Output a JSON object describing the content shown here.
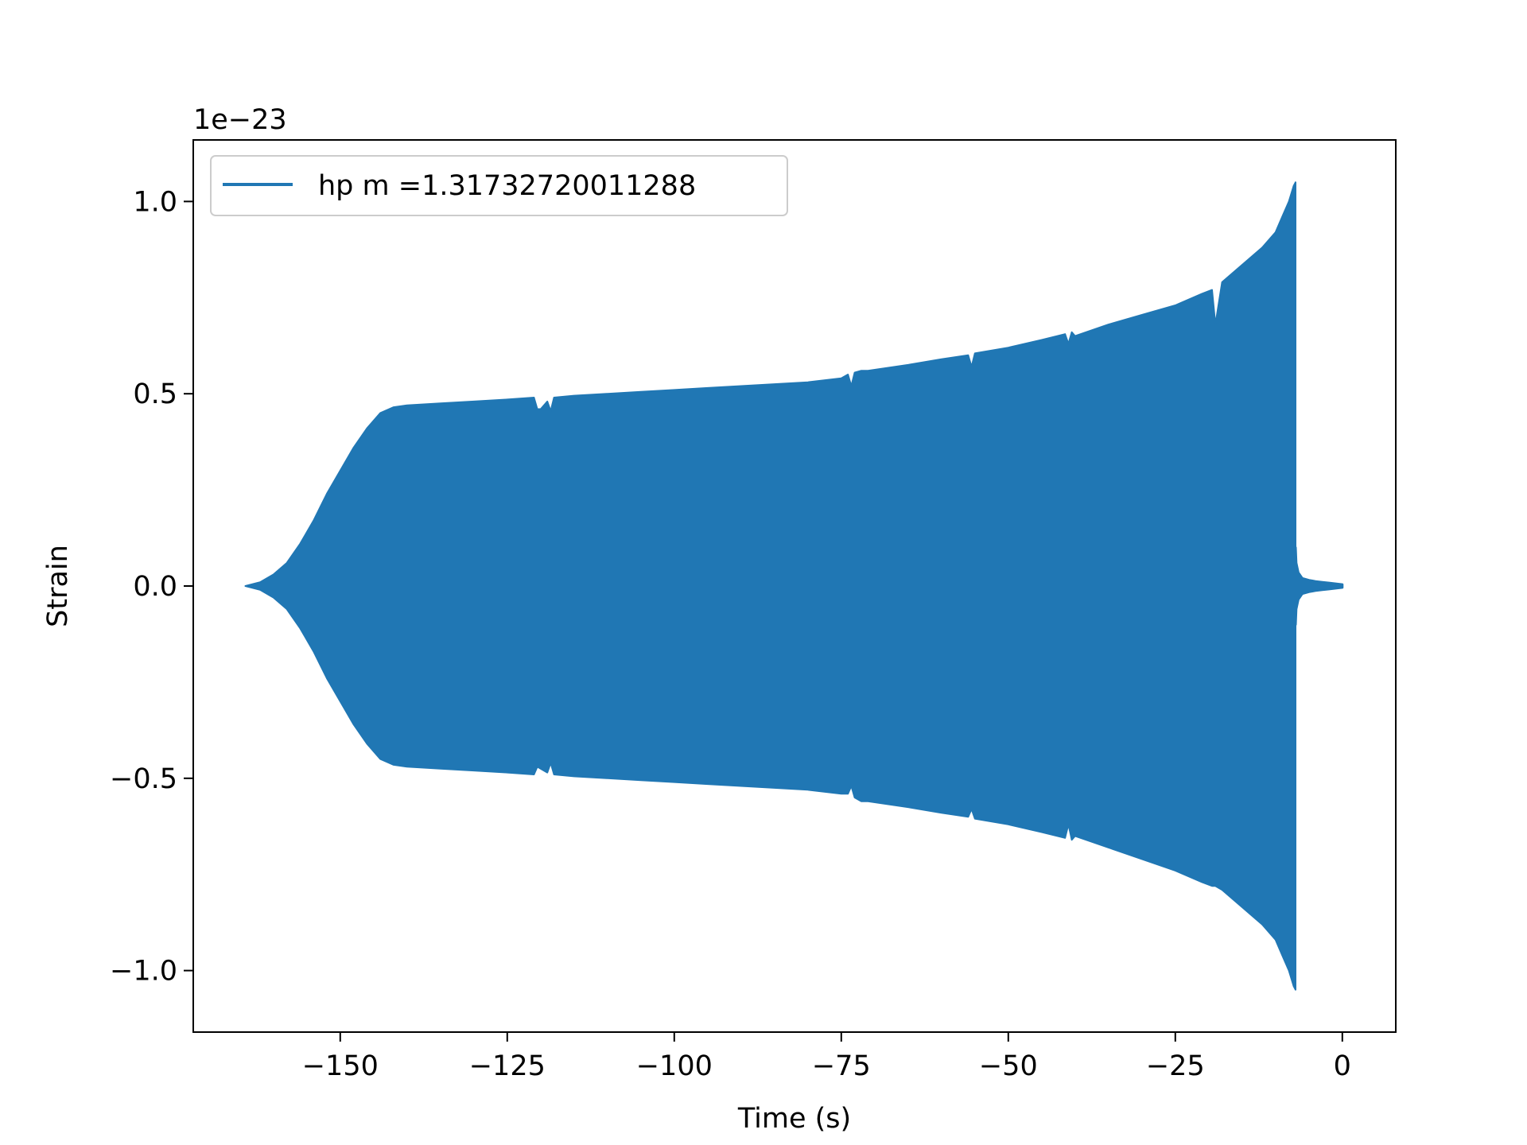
{
  "chart_data": {
    "type": "area",
    "title": "",
    "xlabel": "Time (s)",
    "ylabel": "Strain",
    "y_offset_label": "1e−23",
    "y_scale": 1e-23,
    "xlim": [
      -172,
      8
    ],
    "ylim": [
      -1.16e-23,
      1.16e-23
    ],
    "x_ticks": [
      {
        "value": -150,
        "label": "−150"
      },
      {
        "value": -125,
        "label": "−125"
      },
      {
        "value": -100,
        "label": "−100"
      },
      {
        "value": -75,
        "label": "−75"
      },
      {
        "value": -50,
        "label": "−50"
      },
      {
        "value": -25,
        "label": "−25"
      },
      {
        "value": 0,
        "label": "0"
      }
    ],
    "y_ticks": [
      {
        "value": 1e-23,
        "label": "1.0"
      },
      {
        "value": 5e-24,
        "label": "0.5"
      },
      {
        "value": 0.0,
        "label": "0.0"
      },
      {
        "value": -5e-24,
        "label": "−0.5"
      },
      {
        "value": -1e-23,
        "label": "−1.0"
      }
    ],
    "grid": false,
    "legend_position": "top-left",
    "series": [
      {
        "name": "hp m =1.31732720011288",
        "color": "#2077b4",
        "envelope": {
          "x": [
            -164.2,
            -162,
            -160,
            -158,
            -156,
            -154,
            -152,
            -150,
            -148,
            -146,
            -144,
            -142,
            -140,
            -135,
            -130,
            -125,
            -121,
            -120.5,
            -120,
            -119,
            -118.5,
            -118,
            -115,
            -110,
            -105,
            -100,
            -95,
            -90,
            -85,
            -80,
            -75,
            -74,
            -73.5,
            -73,
            -72,
            -71,
            -65,
            -60,
            -56,
            -55.5,
            -55,
            -50,
            -45,
            -41.5,
            -41,
            -40.5,
            -40,
            -35,
            -30,
            -25,
            -21,
            -19.5,
            -19,
            -18,
            -16,
            -14,
            -12,
            -10,
            -9,
            -8,
            -7.3,
            -7.0
          ],
          "upper": [
            0.0,
            1e-25,
            3e-25,
            6e-25,
            1.1e-24,
            1.7e-24,
            2.4e-24,
            3e-24,
            3.6e-24,
            4.1e-24,
            4.5e-24,
            4.65e-24,
            4.7e-24,
            4.75e-24,
            4.8e-24,
            4.85e-24,
            4.9e-24,
            4.6e-24,
            4.6e-24,
            4.8e-24,
            4.55e-24,
            4.9e-24,
            4.95e-24,
            5e-24,
            5.05e-24,
            5.1e-24,
            5.15e-24,
            5.2e-24,
            5.25e-24,
            5.3e-24,
            5.4e-24,
            5.5e-24,
            5.2e-24,
            5.55e-24,
            5.6e-24,
            5.6e-24,
            5.75e-24,
            5.9e-24,
            6e-24,
            5.7e-24,
            6.05e-24,
            6.2e-24,
            6.4e-24,
            6.55e-24,
            6.3e-24,
            6.6e-24,
            6.5e-24,
            6.8e-24,
            7.05e-24,
            7.3e-24,
            7.6e-24,
            7.7e-24,
            6.8e-24,
            7.9e-24,
            8.2e-24,
            8.5e-24,
            8.8e-24,
            9.2e-24,
            9.6e-24,
            1e-23,
            1.04e-23,
            1.05e-23
          ],
          "lower": [
            0.0,
            -1e-25,
            -3e-25,
            -6e-25,
            -1.1e-24,
            -1.7e-24,
            -2.4e-24,
            -3e-24,
            -3.6e-24,
            -4.1e-24,
            -4.5e-24,
            -4.65e-24,
            -4.7e-24,
            -4.75e-24,
            -4.8e-24,
            -4.85e-24,
            -4.9e-24,
            -4.7e-24,
            -4.75e-24,
            -4.85e-24,
            -4.6e-24,
            -4.9e-24,
            -4.95e-24,
            -5e-24,
            -5.05e-24,
            -5.1e-24,
            -5.15e-24,
            -5.2e-24,
            -5.25e-24,
            -5.3e-24,
            -5.4e-24,
            -5.4e-24,
            -5.2e-24,
            -5.5e-24,
            -5.6e-24,
            -5.6e-24,
            -5.75e-24,
            -5.9e-24,
            -6e-24,
            -5.8e-24,
            -6.05e-24,
            -6.2e-24,
            -6.4e-24,
            -6.55e-24,
            -6.2e-24,
            -6.6e-24,
            -6.5e-24,
            -6.8e-24,
            -7.1e-24,
            -7.4e-24,
            -7.7e-24,
            -7.8e-24,
            -7.8e-24,
            -7.9e-24,
            -8.2e-24,
            -8.5e-24,
            -8.8e-24,
            -9.2e-24,
            -9.6e-24,
            -1e-23,
            -1.04e-23,
            -1.05e-23
          ]
        },
        "ringdown": {
          "x": [
            -7.0,
            -6.9,
            -6.6,
            -6.0,
            -5,
            -4,
            -3,
            -2,
            -1,
            0
          ],
          "upper": [
            1e-24,
            6e-25,
            3.5e-25,
            2e-25,
            1.5e-25,
            1.2e-25,
            1e-25,
            8e-26,
            6e-26,
            4e-26
          ],
          "lower": [
            -1e-24,
            -6e-25,
            -3.5e-25,
            -2e-25,
            -1.5e-25,
            -1.2e-25,
            -1e-25,
            -8e-26,
            -6e-26,
            -4e-26
          ]
        }
      }
    ]
  }
}
